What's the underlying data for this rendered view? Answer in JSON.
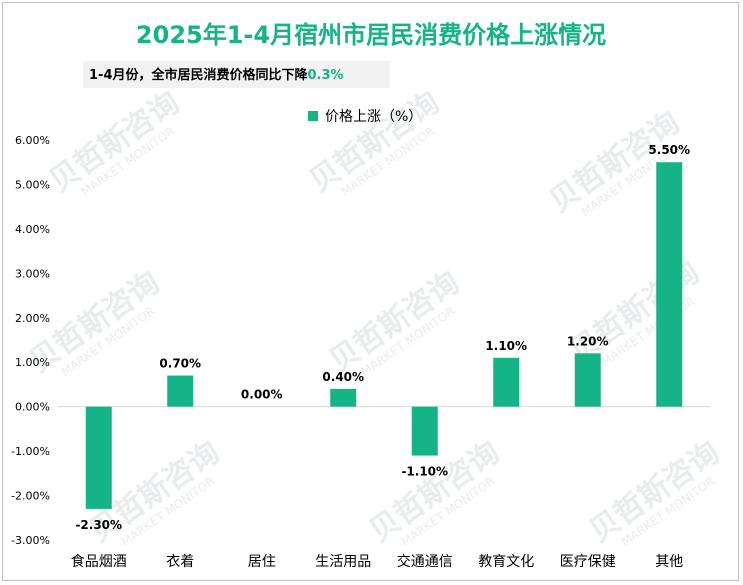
{
  "chart_data": {
    "type": "bar",
    "title": "2025年1-4月宿州市居民消费价格上涨情况",
    "subtitle": {
      "text": "1-4月份，全市居民消费价格同比下降",
      "highlight": "0.3%"
    },
    "categories": [
      "食品烟酒",
      "衣着",
      "居住",
      "生活用品",
      "交通通信",
      "教育文化",
      "医疗保健",
      "其他"
    ],
    "series": [
      {
        "name": "价格上涨（%）",
        "values": [
          -2.3,
          0.7,
          0.0,
          0.4,
          -1.1,
          1.1,
          1.2,
          5.5
        ],
        "value_labels": [
          "-2.30%",
          "0.70%",
          "0.00%",
          "0.40%",
          "-1.10%",
          "1.10%",
          "1.20%",
          "5.50%"
        ]
      }
    ],
    "yticks": [
      6,
      5,
      4,
      3,
      2,
      1,
      0,
      -1,
      -2,
      -3
    ],
    "ytick_labels": [
      "6.00%",
      "5.00%",
      "4.00%",
      "3.00%",
      "2.00%",
      "1.00%",
      "0.00%",
      "-1.00%",
      "-2.00%",
      "-3.00%"
    ],
    "ylim": [
      -3,
      6
    ],
    "grid": false,
    "legend_position": "top-center",
    "colors": {
      "bar": "#14b487",
      "title": "#14b487",
      "highlight": "#14b487"
    }
  },
  "watermark": {
    "text": "贝哲斯咨询",
    "subtext": "MARKET MONITOR"
  }
}
